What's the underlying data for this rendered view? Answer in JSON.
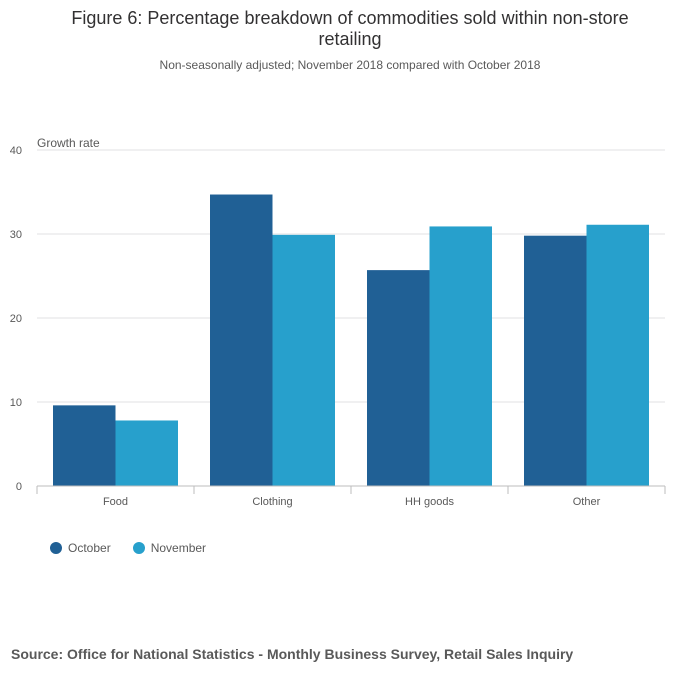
{
  "chart_data": {
    "type": "bar",
    "title_lines": [
      "Figure 6: Percentage breakdown of commodities sold within non-store",
      "retailing"
    ],
    "subtitle": "Non-seasonally adjusted; November 2018 compared with October 2018",
    "ylabel": "Growth rate",
    "xlabel": "",
    "categories": [
      "Food",
      "Clothing",
      "HH goods",
      "Other"
    ],
    "series": [
      {
        "name": "October",
        "color": "#206095",
        "values": [
          9.6,
          34.7,
          25.7,
          29.8
        ]
      },
      {
        "name": "November",
        "color": "#27a0cc",
        "values": [
          7.8,
          29.9,
          30.9,
          31.1
        ]
      }
    ],
    "ylim": [
      0,
      40
    ],
    "yticks": [
      "0",
      "10",
      "20",
      "30",
      "40"
    ],
    "grid": true,
    "legend_position": "bottom-left"
  },
  "source": "Source: Office for National Statistics - Monthly Business Survey, Retail Sales Inquiry"
}
